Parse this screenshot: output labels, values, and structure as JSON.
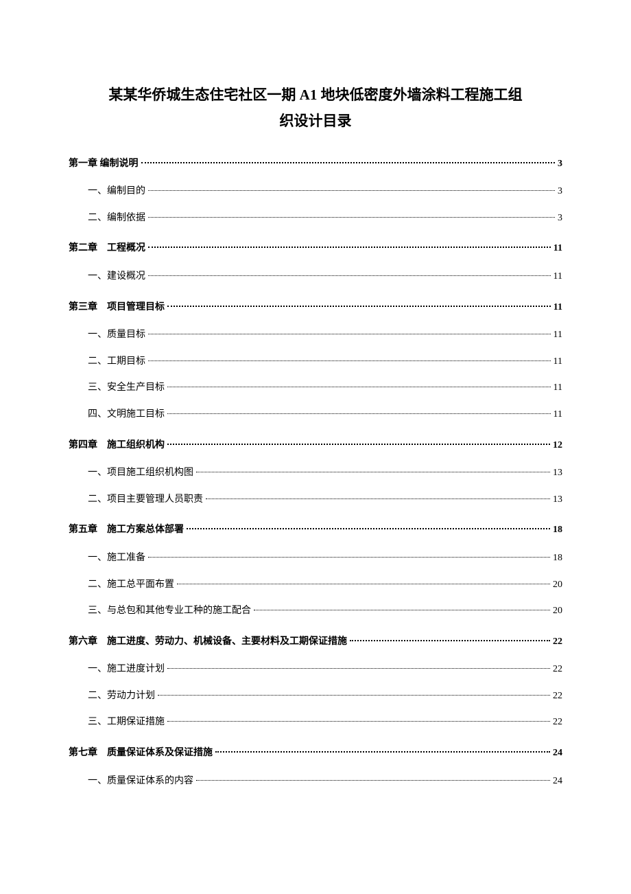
{
  "title_line1": "某某华侨城生态住宅社区一期 A1 地块低密度外墙涂料工程施工组",
  "title_line2": "织设计目录",
  "toc": [
    {
      "type": "chapter",
      "label": "第一章 编制说明",
      "page": "3"
    },
    {
      "type": "sub",
      "label": "一、编制目的",
      "page": "3"
    },
    {
      "type": "sub",
      "label": "二、编制依据",
      "page": "3"
    },
    {
      "type": "chapter",
      "label": "第二章　工程概况",
      "page": "11"
    },
    {
      "type": "sub",
      "label": "一、建设概况",
      "page": "11"
    },
    {
      "type": "chapter",
      "label": "第三章　项目管理目标",
      "page": "11"
    },
    {
      "type": "sub",
      "label": "一、质量目标",
      "page": "11"
    },
    {
      "type": "sub",
      "label": "二、工期目标",
      "page": "11"
    },
    {
      "type": "sub",
      "label": "三、安全生产目标",
      "page": "11"
    },
    {
      "type": "sub",
      "label": "四、文明施工目标",
      "page": "11"
    },
    {
      "type": "chapter",
      "label": "第四章　施工组织机构",
      "page": "12"
    },
    {
      "type": "sub",
      "label": "一、项目施工组织机构图",
      "page": "13"
    },
    {
      "type": "sub",
      "label": "二、项目主要管理人员职责",
      "page": "13"
    },
    {
      "type": "chapter",
      "label": "第五章　施工方案总体部署",
      "page": "18"
    },
    {
      "type": "sub",
      "label": "一、施工准备",
      "page": "18"
    },
    {
      "type": "sub",
      "label": "二、施工总平面布置",
      "page": "20"
    },
    {
      "type": "sub",
      "label": "三、与总包和其他专业工种的施工配合",
      "page": "20"
    },
    {
      "type": "chapter",
      "label": "第六章　施工进度、劳动力、机械设备、主要材料及工期保证措施",
      "page": "22"
    },
    {
      "type": "sub",
      "label": "一、施工进度计划",
      "page": "22"
    },
    {
      "type": "sub",
      "label": "二、劳动力计划",
      "page": "22"
    },
    {
      "type": "sub",
      "label": "三、工期保证措施",
      "page": "22"
    },
    {
      "type": "chapter",
      "label": "第七章　质量保证体系及保证措施",
      "page": "24"
    },
    {
      "type": "sub",
      "label": "一、质量保证体系的内容",
      "page": "24"
    }
  ]
}
